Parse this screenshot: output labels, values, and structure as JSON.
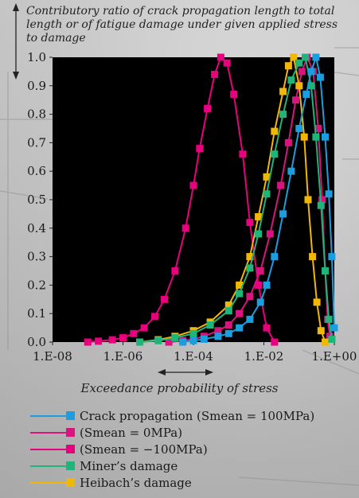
{
  "chart_data": {
    "type": "line",
    "ylabel": "Contributory ratio of crack propagation length to total length or of fatigue damage under given applied stress to damage",
    "xlabel": "Exceedance probability of stress",
    "x_scale": "log",
    "xlim": [
      1e-08,
      1
    ],
    "ylim": [
      0,
      1.0
    ],
    "x_ticks": [
      "1.E-08",
      "1.E-06",
      "1.E-04",
      "1.E-02",
      "1.E+00"
    ],
    "y_ticks": [
      "0.0",
      "0.1",
      "0.2",
      "0.3",
      "0.4",
      "0.5",
      "0.6",
      "0.7",
      "0.8",
      "0.9",
      "1.0"
    ],
    "plot_background": "#000000",
    "series": [
      {
        "name": "Crack propagation (Smean = 100MPa)",
        "color": "#1a9ee0",
        "points": [
          [
            5e-05,
            0.0
          ],
          [
            0.0001,
            0.005
          ],
          [
            0.0002,
            0.01
          ],
          [
            0.0005,
            0.02
          ],
          [
            0.001,
            0.03
          ],
          [
            0.002,
            0.05
          ],
          [
            0.004,
            0.08
          ],
          [
            0.008,
            0.14
          ],
          [
            0.012,
            0.2
          ],
          [
            0.02,
            0.3
          ],
          [
            0.035,
            0.45
          ],
          [
            0.06,
            0.6
          ],
          [
            0.1,
            0.75
          ],
          [
            0.16,
            0.87
          ],
          [
            0.22,
            0.95
          ],
          [
            0.3,
            1.0
          ],
          [
            0.4,
            0.93
          ],
          [
            0.55,
            0.72
          ],
          [
            0.7,
            0.52
          ],
          [
            0.85,
            0.3
          ],
          [
            1.0,
            0.05
          ]
        ]
      },
      {
        "name": "(Smean = 0MPa)",
        "color": "#d9147e",
        "points": [
          [
            2e-05,
            0.0
          ],
          [
            5e-05,
            0.005
          ],
          [
            0.0001,
            0.01
          ],
          [
            0.0002,
            0.02
          ],
          [
            0.0005,
            0.04
          ],
          [
            0.001,
            0.06
          ],
          [
            0.002,
            0.1
          ],
          [
            0.004,
            0.16
          ],
          [
            0.008,
            0.25
          ],
          [
            0.015,
            0.38
          ],
          [
            0.03,
            0.55
          ],
          [
            0.05,
            0.7
          ],
          [
            0.08,
            0.85
          ],
          [
            0.12,
            0.95
          ],
          [
            0.17,
            1.0
          ],
          [
            0.25,
            0.95
          ],
          [
            0.35,
            0.75
          ],
          [
            0.45,
            0.5
          ],
          [
            0.55,
            0.25
          ],
          [
            0.65,
            0.08
          ],
          [
            0.75,
            0.02
          ]
        ]
      },
      {
        "name": "(Smean = −100MPa)",
        "color": "#e8007e",
        "points": [
          [
            1e-07,
            0.0
          ],
          [
            2e-07,
            0.003
          ],
          [
            5e-07,
            0.008
          ],
          [
            1e-06,
            0.015
          ],
          [
            2e-06,
            0.03
          ],
          [
            4e-06,
            0.05
          ],
          [
            8e-06,
            0.09
          ],
          [
            1.5e-05,
            0.15
          ],
          [
            3e-05,
            0.25
          ],
          [
            6e-05,
            0.4
          ],
          [
            0.0001,
            0.55
          ],
          [
            0.00015,
            0.68
          ],
          [
            0.00025,
            0.82
          ],
          [
            0.0004,
            0.94
          ],
          [
            0.0006,
            1.0
          ],
          [
            0.0009,
            0.98
          ],
          [
            0.0014,
            0.87
          ],
          [
            0.0025,
            0.66
          ],
          [
            0.004,
            0.42
          ],
          [
            0.007,
            0.2
          ],
          [
            0.012,
            0.05
          ],
          [
            0.02,
            0.0
          ]
        ]
      },
      {
        "name": "Miner's damage",
        "color": "#1fb57a",
        "points": [
          [
            3e-06,
            0.0
          ],
          [
            1e-05,
            0.005
          ],
          [
            3e-05,
            0.015
          ],
          [
            0.0001,
            0.03
          ],
          [
            0.0003,
            0.06
          ],
          [
            0.001,
            0.11
          ],
          [
            0.002,
            0.17
          ],
          [
            0.004,
            0.26
          ],
          [
            0.007,
            0.38
          ],
          [
            0.012,
            0.52
          ],
          [
            0.02,
            0.66
          ],
          [
            0.035,
            0.8
          ],
          [
            0.06,
            0.92
          ],
          [
            0.1,
            0.98
          ],
          [
            0.15,
            1.0
          ],
          [
            0.22,
            0.9
          ],
          [
            0.3,
            0.72
          ],
          [
            0.42,
            0.48
          ],
          [
            0.55,
            0.25
          ],
          [
            0.7,
            0.08
          ],
          [
            0.85,
            0.01
          ]
        ]
      },
      {
        "name": "Heibach's damage",
        "color": "#f2b705",
        "points": [
          [
            3e-06,
            0.0
          ],
          [
            1e-05,
            0.008
          ],
          [
            3e-05,
            0.02
          ],
          [
            0.0001,
            0.04
          ],
          [
            0.0003,
            0.07
          ],
          [
            0.001,
            0.13
          ],
          [
            0.002,
            0.2
          ],
          [
            0.004,
            0.3
          ],
          [
            0.007,
            0.44
          ],
          [
            0.012,
            0.58
          ],
          [
            0.02,
            0.74
          ],
          [
            0.035,
            0.88
          ],
          [
            0.05,
            0.97
          ],
          [
            0.07,
            1.0
          ],
          [
            0.1,
            0.9
          ],
          [
            0.14,
            0.72
          ],
          [
            0.18,
            0.5
          ],
          [
            0.24,
            0.3
          ],
          [
            0.32,
            0.14
          ],
          [
            0.42,
            0.04
          ],
          [
            0.55,
            0.0
          ]
        ]
      }
    ],
    "legend": [
      {
        "label": "Crack propagation (Smean = 100MPa)",
        "color": "#1a9ee0"
      },
      {
        "label": "(Smean = 0MPa)",
        "color": "#d9147e"
      },
      {
        "label": "(Smean = −100MPa)",
        "color": "#e8007e"
      },
      {
        "label": "Miner’s damage",
        "color": "#1fb57a"
      },
      {
        "label": "Heibach’s damage",
        "color": "#f2b705"
      }
    ]
  }
}
